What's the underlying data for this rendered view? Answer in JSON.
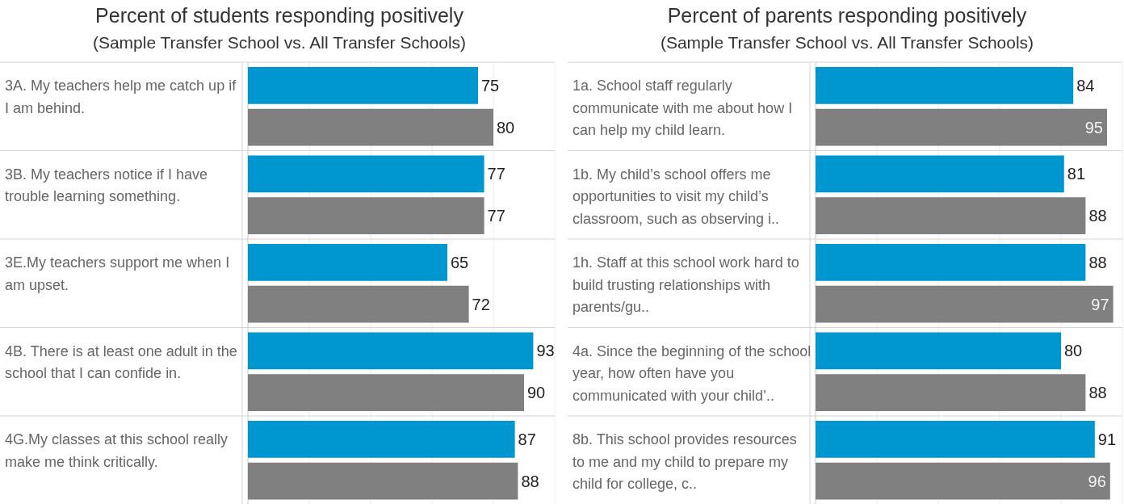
{
  "chart_data": [
    {
      "type": "bar",
      "orientation": "horizontal",
      "title": "Percent of students responding positively",
      "subtitle": "(Sample Transfer School vs. All Transfer Schools)",
      "categories": [
        "3A. My teachers help me catch up if I am behind.",
        "3B. My teachers notice if I have trouble learning something.",
        "3E.My teachers support me when I am upset.",
        "4B. There is at least one adult in the school that I can confide in.",
        "4G.My classes at this school really make me think critically."
      ],
      "series": [
        {
          "color": "#0096d0",
          "values": [
            75,
            77,
            65,
            93,
            87
          ]
        },
        {
          "color": "#808080",
          "values": [
            80,
            77,
            72,
            90,
            88
          ]
        }
      ],
      "xlim": [
        0,
        100
      ],
      "xticks": [
        {
          "value": 0,
          "label": null
        },
        {
          "value": 20,
          "label": null
        },
        {
          "value": 40,
          "label": null
        },
        {
          "value": 60,
          "label": null
        },
        {
          "value": 80,
          "label": null
        },
        {
          "value": 100,
          "label": null
        }
      ],
      "grid": "x",
      "tick_labels": "y",
      "data_labels": true
    },
    {
      "type": "bar",
      "orientation": "horizontal",
      "title": "Percent of parents responding positively",
      "subtitle": "(Sample Transfer School vs. All Transfer Schools)",
      "categories": [
        "1a. School staff regularly communicate with me about how I can help my child learn.",
        "1b. My child’s school offers me opportunities to visit my child’s classroom, such as observing i..",
        "1h. Staff at this school work hard to build trusting relationships with parents/gu..",
        "4a. Since the beginning of the school year, how often have you communicated with your child’..",
        "8b. This school provides resources to me and my child to prepare my child for college, c.."
      ],
      "series": [
        {
          "color": "#0096d0",
          "values": [
            84,
            81,
            88,
            80,
            91
          ]
        },
        {
          "color": "#808080",
          "values": [
            95,
            88,
            97,
            88,
            96
          ]
        }
      ],
      "xlim": [
        0,
        100
      ],
      "xticks": [
        {
          "value": 0,
          "label": null
        },
        {
          "value": 20,
          "label": null
        },
        {
          "value": 40,
          "label": null
        },
        {
          "value": 60,
          "label": null
        },
        {
          "value": 80,
          "label": null
        },
        {
          "value": 100,
          "label": null
        }
      ],
      "grid": "x",
      "tick_labels": "y",
      "data_labels": true
    }
  ]
}
